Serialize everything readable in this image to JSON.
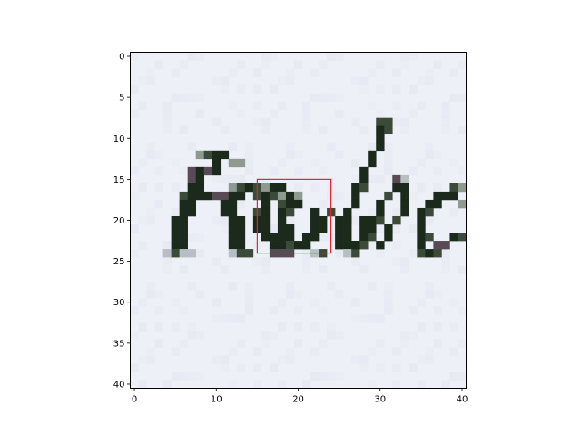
{
  "chart_data": {
    "type": "heatmap",
    "description_kind": "image-display",
    "title": "",
    "xlabel": "",
    "ylabel": "",
    "image_shape": [
      41,
      41
    ],
    "xlim": [
      -0.5,
      40.5
    ],
    "ylim": [
      40.5,
      -0.5
    ],
    "x_ticks": [
      0,
      10,
      20,
      30,
      40
    ],
    "y_ticks": [
      0,
      5,
      10,
      15,
      20,
      25,
      30,
      35,
      40
    ],
    "x_tick_labels": [
      "0",
      "10",
      "20",
      "30",
      "40"
    ],
    "y_tick_labels": [
      "0",
      "5",
      "10",
      "15",
      "20",
      "25",
      "30",
      "35",
      "40"
    ],
    "handwritten_text": "Robe",
    "highlight_box": {
      "x0": 15,
      "x1": 24,
      "y0": 15,
      "y1": 24,
      "color": "#e8242b"
    },
    "colors": {
      "paper": "#eef0f8",
      "paper_shade": "#e4e7f1",
      "ink_dark": "#1b2a1b",
      "ink_mid": "#3c4a3a",
      "ink_light": "#8e9a90",
      "ink_purple": "#5a4a55",
      "ink_faint": "#b7bfc3"
    },
    "ink_pixels": [
      [
        12,
        8,
        "l"
      ],
      [
        12,
        9,
        "m"
      ],
      [
        12,
        10,
        "d"
      ],
      [
        12,
        11,
        "d"
      ],
      [
        13,
        10,
        "d"
      ],
      [
        14,
        10,
        "d"
      ],
      [
        13,
        12,
        "l"
      ],
      [
        13,
        13,
        "l"
      ],
      [
        14,
        7,
        "p"
      ],
      [
        14,
        8,
        "d"
      ],
      [
        14,
        9,
        "p"
      ],
      [
        15,
        7,
        "p"
      ],
      [
        15,
        8,
        "d"
      ],
      [
        16,
        7,
        "d"
      ],
      [
        16,
        8,
        "d"
      ],
      [
        16,
        12,
        "l"
      ],
      [
        16,
        13,
        "m"
      ],
      [
        16,
        14,
        "d"
      ],
      [
        16,
        15,
        "m"
      ],
      [
        16,
        16,
        "l"
      ],
      [
        16,
        17,
        "d"
      ],
      [
        16,
        18,
        "d"
      ],
      [
        17,
        6,
        "m"
      ],
      [
        17,
        7,
        "d"
      ],
      [
        17,
        8,
        "d"
      ],
      [
        17,
        9,
        "d"
      ],
      [
        17,
        10,
        "p"
      ],
      [
        17,
        11,
        "p"
      ],
      [
        17,
        12,
        "d"
      ],
      [
        17,
        13,
        "d"
      ],
      [
        17,
        15,
        "m"
      ],
      [
        17,
        16,
        "d"
      ],
      [
        17,
        17,
        "m"
      ],
      [
        17,
        18,
        "l"
      ],
      [
        17,
        19,
        "d"
      ],
      [
        17,
        20,
        "l"
      ],
      [
        18,
        6,
        "d"
      ],
      [
        18,
        7,
        "d"
      ],
      [
        18,
        11,
        "d"
      ],
      [
        18,
        12,
        "d"
      ],
      [
        18,
        16,
        "d"
      ],
      [
        18,
        18,
        "m"
      ],
      [
        18,
        19,
        "d"
      ],
      [
        18,
        20,
        "d"
      ],
      [
        19,
        6,
        "d"
      ],
      [
        19,
        7,
        "d"
      ],
      [
        19,
        11,
        "d"
      ],
      [
        19,
        12,
        "d"
      ],
      [
        19,
        15,
        "m"
      ],
      [
        19,
        16,
        "d"
      ],
      [
        19,
        18,
        "d"
      ],
      [
        19,
        19,
        "m"
      ],
      [
        19,
        22,
        "d"
      ],
      [
        19,
        24,
        "m"
      ],
      [
        20,
        5,
        "d"
      ],
      [
        20,
        6,
        "d"
      ],
      [
        20,
        12,
        "d"
      ],
      [
        20,
        13,
        "d"
      ],
      [
        20,
        15,
        "d"
      ],
      [
        20,
        16,
        "d"
      ],
      [
        20,
        18,
        "d"
      ],
      [
        20,
        22,
        "d"
      ],
      [
        20,
        23,
        "d"
      ],
      [
        20,
        25,
        "d"
      ],
      [
        20,
        26,
        "m"
      ],
      [
        20,
        28,
        "d"
      ],
      [
        20,
        29,
        "d"
      ],
      [
        20,
        30,
        "m"
      ],
      [
        21,
        5,
        "d"
      ],
      [
        21,
        6,
        "d"
      ],
      [
        21,
        12,
        "d"
      ],
      [
        21,
        13,
        "d"
      ],
      [
        21,
        15,
        "d"
      ],
      [
        21,
        16,
        "d"
      ],
      [
        21,
        18,
        "d"
      ],
      [
        21,
        19,
        "d"
      ],
      [
        21,
        22,
        "d"
      ],
      [
        21,
        23,
        "d"
      ],
      [
        21,
        25,
        "d"
      ],
      [
        21,
        28,
        "d"
      ],
      [
        21,
        29,
        "d"
      ],
      [
        22,
        5,
        "d"
      ],
      [
        22,
        6,
        "d"
      ],
      [
        22,
        12,
        "d"
      ],
      [
        22,
        13,
        "d"
      ],
      [
        22,
        16,
        "d"
      ],
      [
        22,
        17,
        "d"
      ],
      [
        22,
        18,
        "d"
      ],
      [
        22,
        19,
        "d"
      ],
      [
        22,
        21,
        "d"
      ],
      [
        22,
        22,
        "d"
      ],
      [
        22,
        25,
        "d"
      ],
      [
        22,
        28,
        "d"
      ],
      [
        22,
        29,
        "m"
      ],
      [
        23,
        5,
        "d"
      ],
      [
        23,
        6,
        "d"
      ],
      [
        23,
        12,
        "d"
      ],
      [
        23,
        13,
        "d"
      ],
      [
        23,
        17,
        "d"
      ],
      [
        23,
        18,
        "d"
      ],
      [
        23,
        19,
        "m"
      ],
      [
        23,
        20,
        "d"
      ],
      [
        23,
        21,
        "d"
      ],
      [
        23,
        25,
        "d"
      ],
      [
        23,
        26,
        "d"
      ],
      [
        23,
        27,
        "d"
      ],
      [
        23,
        28,
        "m"
      ],
      [
        24,
        4,
        "f"
      ],
      [
        24,
        5,
        "m"
      ],
      [
        24,
        6,
        "f"
      ],
      [
        24,
        7,
        "f"
      ],
      [
        24,
        12,
        "f"
      ],
      [
        24,
        13,
        "m"
      ],
      [
        24,
        14,
        "m"
      ],
      [
        24,
        17,
        "p"
      ],
      [
        24,
        18,
        "p"
      ],
      [
        24,
        19,
        "p"
      ],
      [
        24,
        22,
        "f"
      ],
      [
        24,
        23,
        "m"
      ],
      [
        24,
        26,
        "f"
      ],
      [
        24,
        27,
        "m"
      ],
      [
        8,
        30,
        "m"
      ],
      [
        8,
        31,
        "m"
      ],
      [
        9,
        30,
        "d"
      ],
      [
        9,
        31,
        "m"
      ],
      [
        10,
        30,
        "d"
      ],
      [
        11,
        30,
        "d"
      ],
      [
        12,
        29,
        "d"
      ],
      [
        13,
        29,
        "d"
      ],
      [
        14,
        28,
        "d"
      ],
      [
        15,
        28,
        "d"
      ],
      [
        15,
        32,
        "p"
      ],
      [
        15,
        33,
        "f"
      ],
      [
        16,
        27,
        "d"
      ],
      [
        16,
        28,
        "m"
      ],
      [
        16,
        32,
        "d"
      ],
      [
        16,
        33,
        "d"
      ],
      [
        17,
        27,
        "d"
      ],
      [
        17,
        31,
        "m"
      ],
      [
        17,
        33,
        "d"
      ],
      [
        18,
        27,
        "d"
      ],
      [
        18,
        30,
        "d"
      ],
      [
        18,
        33,
        "d"
      ],
      [
        19,
        26,
        "d"
      ],
      [
        19,
        30,
        "d"
      ],
      [
        19,
        33,
        "d"
      ],
      [
        20,
        26,
        "d"
      ],
      [
        20,
        32,
        "m"
      ],
      [
        21,
        26,
        "d"
      ],
      [
        21,
        31,
        "d"
      ],
      [
        22,
        26,
        "d"
      ],
      [
        22,
        31,
        "d"
      ],
      [
        23,
        27,
        "d"
      ],
      [
        23,
        30,
        "d"
      ],
      [
        16,
        39,
        "m"
      ],
      [
        16,
        40,
        "l"
      ],
      [
        17,
        37,
        "d"
      ],
      [
        17,
        38,
        "d"
      ],
      [
        17,
        39,
        "d"
      ],
      [
        18,
        36,
        "d"
      ],
      [
        18,
        37,
        "d"
      ],
      [
        19,
        35,
        "d"
      ],
      [
        19,
        36,
        "m"
      ],
      [
        20,
        35,
        "d"
      ],
      [
        21,
        35,
        "d"
      ],
      [
        22,
        35,
        "d"
      ],
      [
        22,
        36,
        "m"
      ],
      [
        23,
        35,
        "d"
      ],
      [
        23,
        37,
        "p"
      ],
      [
        23,
        38,
        "p"
      ],
      [
        24,
        35,
        "m"
      ],
      [
        24,
        36,
        "d"
      ],
      [
        24,
        37,
        "m"
      ],
      [
        18,
        40,
        "l"
      ],
      [
        22,
        39,
        "d"
      ],
      [
        22,
        40,
        "m"
      ]
    ]
  }
}
